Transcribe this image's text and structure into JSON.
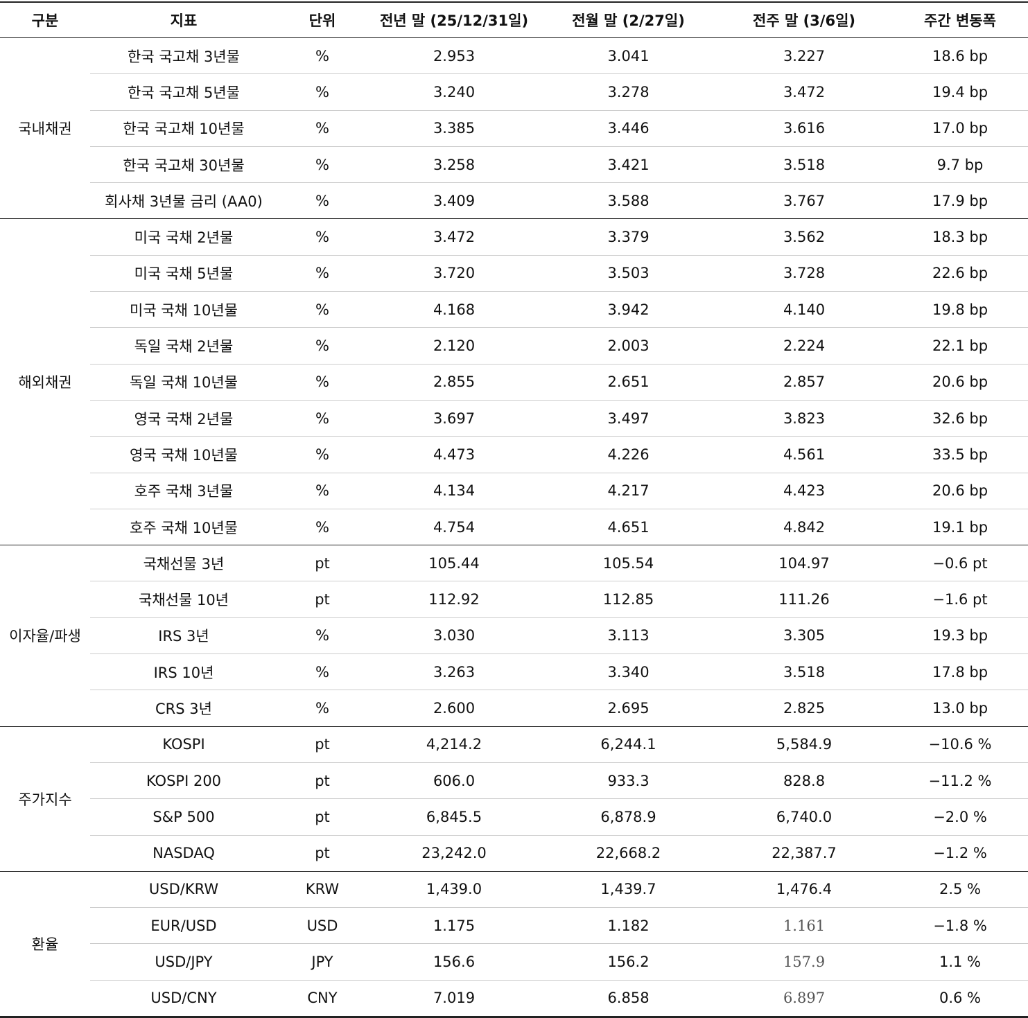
{
  "header": [
    "구분",
    "지표",
    "단위",
    "전년 말 (25/12/31일)",
    "전월 말 (2/27일)",
    "전주 말 (3/6일)",
    "주간 변동폭"
  ],
  "groups": [
    {
      "name": "국내채권",
      "rows": [
        [
          "한국 국고채 3년물",
          "%",
          "2.953",
          "3.041",
          "3.227",
          "18.6 bp"
        ],
        [
          "한국 국고채 5년물",
          "%",
          "3.240",
          "3.278",
          "3.472",
          "19.4 bp"
        ],
        [
          "한국 국고채 10년물",
          "%",
          "3.385",
          "3.446",
          "3.616",
          "17.0 bp"
        ],
        [
          "한국 국고채 30년물",
          "%",
          "3.258",
          "3.421",
          "3.518",
          "9.7 bp"
        ],
        [
          "회사채 3년물 금리 (AA0)",
          "%",
          "3.409",
          "3.588",
          "3.767",
          "17.9 bp"
        ]
      ]
    },
    {
      "name": "해외채권",
      "rows": [
        [
          "미국 국채 2년물",
          "%",
          "3.472",
          "3.379",
          "3.562",
          "18.3 bp"
        ],
        [
          "미국 국채 5년물",
          "%",
          "3.720",
          "3.503",
          "3.728",
          "22.6 bp"
        ],
        [
          "미국 국채 10년물",
          "%",
          "4.168",
          "3.942",
          "4.140",
          "19.8 bp"
        ],
        [
          "독일 국채 2년물",
          "%",
          "2.120",
          "2.003",
          "2.224",
          "22.1 bp"
        ],
        [
          "독일 국채 10년물",
          "%",
          "2.855",
          "2.651",
          "2.857",
          "20.6 bp"
        ],
        [
          "영국 국채 2년물",
          "%",
          "3.697",
          "3.497",
          "3.823",
          "32.6 bp"
        ],
        [
          "영국 국채 10년물",
          "%",
          "4.473",
          "4.226",
          "4.561",
          "33.5 bp"
        ],
        [
          "호주 국채 3년물",
          "%",
          "4.134",
          "4.217",
          "4.423",
          "20.6 bp"
        ],
        [
          "호주 국채 10년물",
          "%",
          "4.754",
          "4.651",
          "4.842",
          "19.1 bp"
        ]
      ]
    },
    {
      "name": "이자율/파생",
      "rows": [
        [
          "국채선물 3년",
          "pt",
          "105.44",
          "105.54",
          "104.97",
          "−0.6 pt"
        ],
        [
          "국채선물 10년",
          "pt",
          "112.92",
          "112.85",
          "111.26",
          "−1.6 pt"
        ],
        [
          "IRS 3년",
          "%",
          "3.030",
          "3.113",
          "3.305",
          "19.3 bp"
        ],
        [
          "IRS 10년",
          "%",
          "3.263",
          "3.340",
          "3.518",
          "17.8 bp"
        ],
        [
          "CRS 3년",
          "%",
          "2.600",
          "2.695",
          "2.825",
          "13.0 bp"
        ]
      ]
    },
    {
      "name": "주가지수",
      "rows": [
        [
          "KOSPI",
          "pt",
          "4,214.2",
          "6,244.1",
          "5,584.9",
          "−10.6 %"
        ],
        [
          "KOSPI 200",
          "pt",
          "606.0",
          "933.3",
          "828.8",
          "−11.2 %"
        ],
        [
          "S&P 500",
          "pt",
          "6,845.5",
          "6,878.9",
          "6,740.0",
          "−2.0 %"
        ],
        [
          "NASDAQ",
          "pt",
          "23,242.0",
          "22,668.2",
          "22,387.7",
          "−1.2 %"
        ]
      ]
    },
    {
      "name": "환율",
      "rows": [
        [
          "USD/KRW",
          "KRW",
          "1,439.0",
          "1,439.7",
          "1,476.4",
          "2.5 %"
        ],
        [
          "EUR/USD",
          "USD",
          "1.175",
          "1.182",
          "1.161",
          "−1.8 %"
        ],
        [
          "USD/JPY",
          "JPY",
          "156.6",
          "156.2",
          "157.9",
          "1.1 %"
        ],
        [
          "USD/CNY",
          "CNY",
          "7.019",
          "6.858",
          "6.897",
          "0.6 %"
        ]
      ]
    }
  ]
}
